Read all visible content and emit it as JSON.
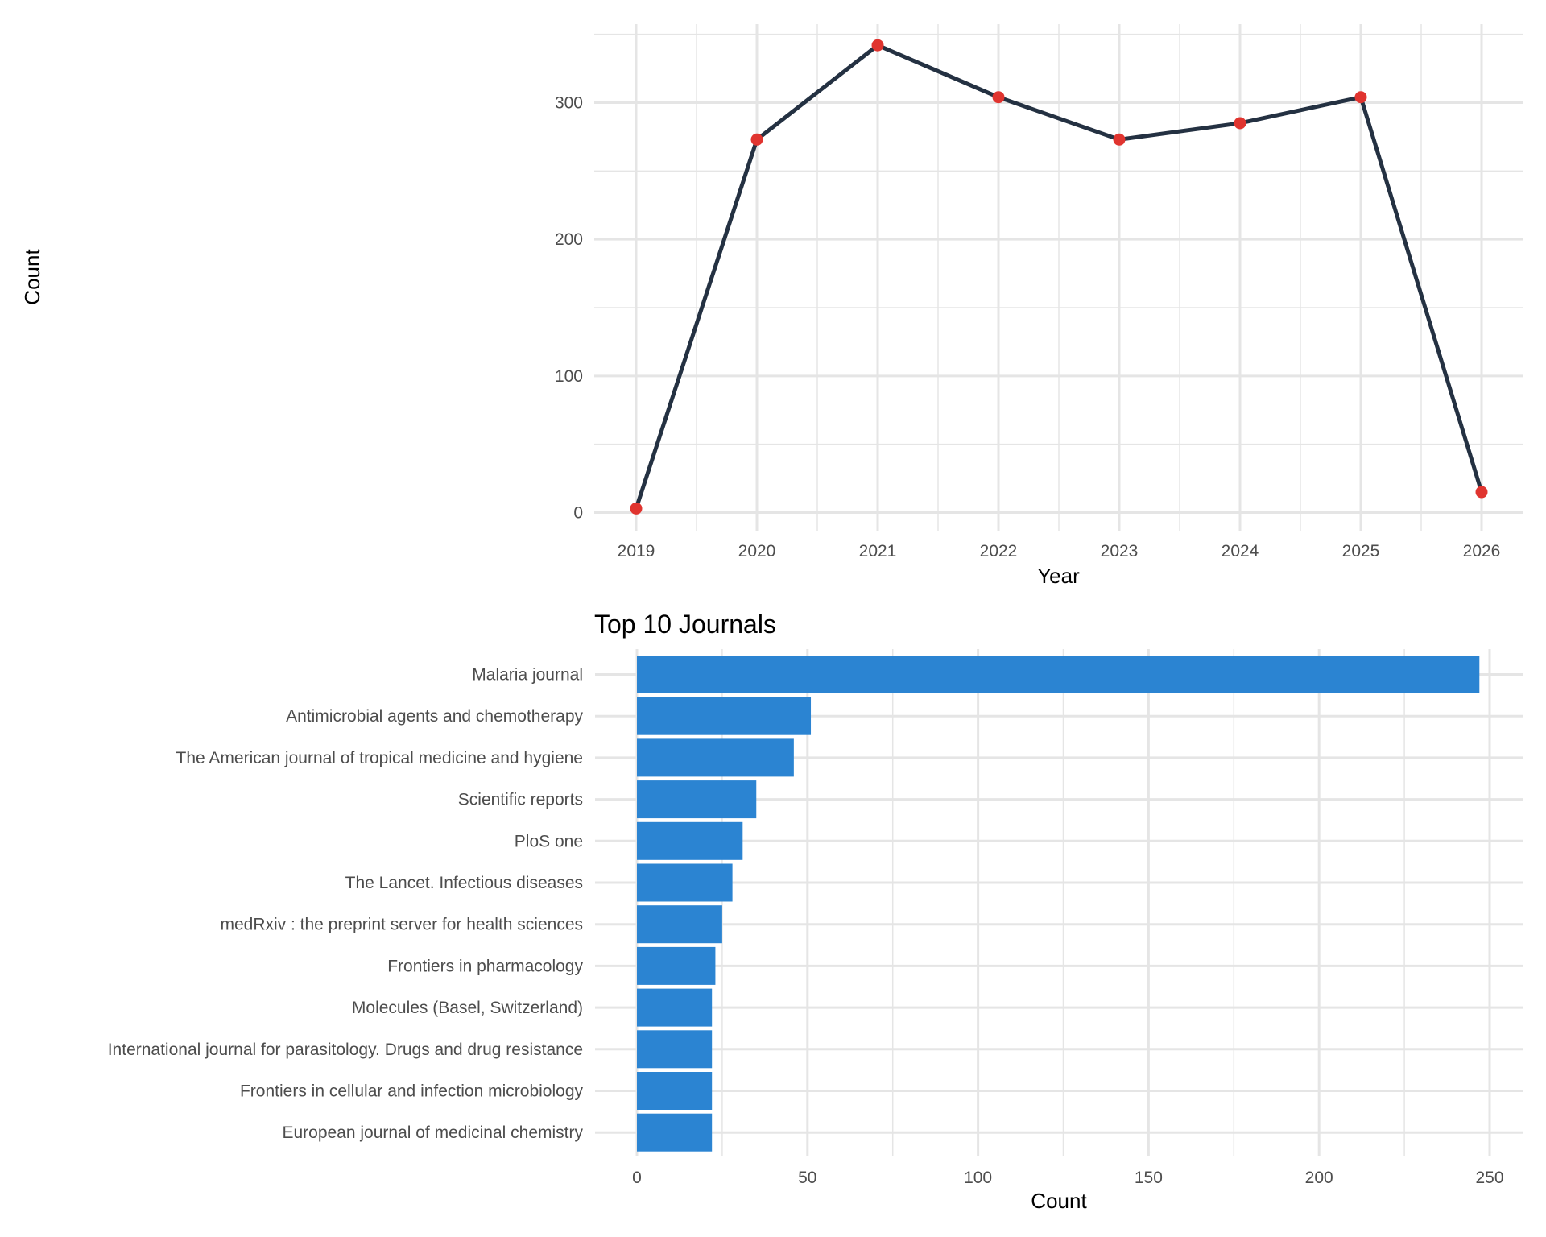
{
  "chart_data": [
    {
      "type": "line",
      "title": "",
      "xlabel": "Year",
      "ylabel": "Count",
      "x": [
        2019,
        2020,
        2021,
        2022,
        2023,
        2024,
        2025,
        2026
      ],
      "x_tick_labels": [
        "2019",
        "2020",
        "2021",
        "2022",
        "2023",
        "2024",
        "2025",
        "2026"
      ],
      "y_ticks": [
        0,
        100,
        200,
        300
      ],
      "y_tick_labels": [
        "0",
        "100",
        "200",
        "300"
      ],
      "ylim": [
        -12,
        355
      ],
      "xlim": [
        2018.65,
        2026.4
      ],
      "grid": true,
      "series": [
        {
          "name": "Count",
          "values": [
            3,
            273,
            342,
            304,
            273,
            285,
            304,
            15
          ],
          "line_color": "#243142",
          "point_color": "#E0342F"
        }
      ]
    },
    {
      "type": "bar",
      "orientation": "horizontal",
      "title": "Top 10 Journals",
      "xlabel": "Count",
      "ylabel": "",
      "categories": [
        "Malaria journal",
        "Antimicrobial agents and chemotherapy",
        "The American journal of tropical medicine and hygiene",
        "Scientific reports",
        "PloS one",
        "The Lancet. Infectious diseases",
        "medRxiv : the preprint server for health sciences",
        "Frontiers in pharmacology",
        "Molecules (Basel, Switzerland)",
        "International journal for parasitology. Drugs and drug resistance",
        "Frontiers in cellular and infection microbiology",
        "European journal of medicinal chemistry"
      ],
      "values": [
        247,
        51,
        46,
        35,
        31,
        28,
        25,
        23,
        22,
        22,
        22,
        22
      ],
      "x_ticks": [
        0,
        50,
        100,
        150,
        200,
        250
      ],
      "x_tick_labels": [
        "0",
        "50",
        "100",
        "150",
        "200",
        "250"
      ],
      "xlim": [
        -12.4,
        260
      ],
      "grid": true,
      "bar_color": "#2B84D2"
    }
  ]
}
